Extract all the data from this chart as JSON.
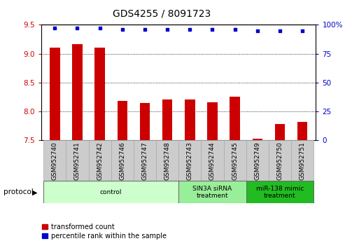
{
  "title": "GDS4255 / 8091723",
  "samples": [
    "GSM952740",
    "GSM952741",
    "GSM952742",
    "GSM952746",
    "GSM952747",
    "GSM952748",
    "GSM952743",
    "GSM952744",
    "GSM952745",
    "GSM952749",
    "GSM952750",
    "GSM952751"
  ],
  "transformed_count": [
    9.1,
    9.17,
    9.1,
    8.18,
    8.15,
    8.2,
    8.21,
    8.16,
    8.25,
    7.52,
    7.78,
    7.82
  ],
  "percentile_rank": [
    97,
    97,
    97,
    96,
    96,
    96,
    96,
    96,
    96,
    95,
    95,
    95
  ],
  "ylim_left": [
    7.5,
    9.5
  ],
  "ylim_right": [
    0,
    100
  ],
  "yticks_left": [
    7.5,
    8.0,
    8.5,
    9.0,
    9.5
  ],
  "yticks_right": [
    0,
    25,
    50,
    75,
    100
  ],
  "bar_color": "#cc0000",
  "scatter_color": "#0000cc",
  "bar_width": 0.45,
  "protocol_groups": [
    {
      "label": "control",
      "start": 0,
      "end": 6,
      "color": "#ccffcc"
    },
    {
      "label": "SIN3A siRNA\ntreatment",
      "start": 6,
      "end": 9,
      "color": "#99ee99"
    },
    {
      "label": "miR-138 mimic\ntreatment",
      "start": 9,
      "end": 12,
      "color": "#22bb22"
    }
  ],
  "left_tick_color": "#cc0000",
  "right_tick_color": "#0000cc",
  "legend_items": [
    {
      "label": "transformed count",
      "color": "#cc0000"
    },
    {
      "label": "percentile rank within the sample",
      "color": "#0000cc"
    }
  ],
  "protocol_label": "protocol",
  "title_fontsize": 10,
  "tick_fontsize": 7.5,
  "sample_fontsize": 6.5,
  "label_bg_color": "#cccccc",
  "label_edge_color": "#aaaaaa"
}
